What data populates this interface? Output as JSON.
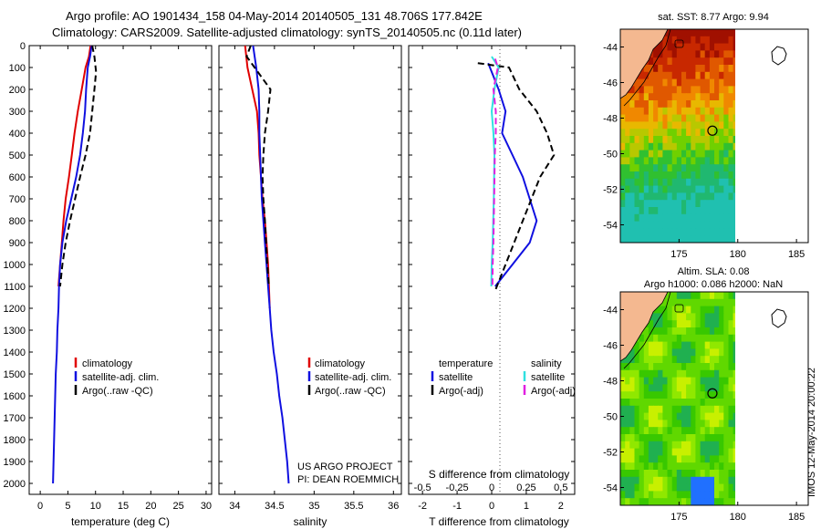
{
  "header": {
    "line1": "Argo profile: AO 1901434_158 04-May-2014 20140505_131 48.706S 177.842E",
    "line2": "Climatology: CARS2009. Satellite-adjusted climatology: synTS_20140505.nc (0.11d later)"
  },
  "colors": {
    "climatology": "#e00000",
    "satellite": "#1010e0",
    "argo": "#000000",
    "salinity_satellite": "#30e0e0",
    "salinity_argo": "#e020e0",
    "land": "#f4b890"
  },
  "notes": {
    "project_line1": "US ARGO PROJECT",
    "project_line2": "PI: DEAN ROEMMICH",
    "timestamp": "IMOS 12-May-2014 20:00:22"
  },
  "chart_data": [
    {
      "type": "line",
      "xlabel": "temperature (deg C)",
      "ylabel": "",
      "xlim": [
        -2,
        31
      ],
      "ylim": [
        2050,
        0
      ],
      "xticks": [
        0,
        5,
        10,
        15,
        20,
        25,
        30
      ],
      "yticks": [
        0,
        100,
        200,
        300,
        400,
        500,
        600,
        700,
        800,
        900,
        1000,
        1100,
        1200,
        1300,
        1400,
        1500,
        1600,
        1700,
        1800,
        1900,
        2000
      ],
      "legend": [
        "climatology",
        "satellite-adj. clim.",
        "Argo(..raw -QC)"
      ],
      "legend_position": "lower-right",
      "series": [
        {
          "name": "climatology",
          "color": "#e00000",
          "style": "solid",
          "x": [
            9.1,
            8.8,
            8.2,
            7.5,
            6.8,
            6.2,
            5.7,
            5.2,
            4.6,
            4.2,
            3.9,
            3.6,
            3.3
          ],
          "y": [
            0,
            50,
            100,
            200,
            300,
            400,
            500,
            600,
            700,
            800,
            900,
            1000,
            1100
          ]
        },
        {
          "name": "satellite-adj. clim.",
          "color": "#1010e0",
          "style": "solid",
          "x": [
            9.3,
            9.0,
            8.6,
            8.3,
            8.1,
            7.7,
            7.2,
            6.5,
            5.6,
            4.7,
            4.0,
            3.6,
            3.4,
            3.3,
            3.1,
            3.0,
            2.8,
            2.7,
            2.6,
            2.5,
            2.4,
            2.3
          ],
          "y": [
            0,
            50,
            100,
            200,
            300,
            400,
            500,
            600,
            700,
            800,
            900,
            1000,
            1100,
            1200,
            1300,
            1400,
            1500,
            1600,
            1700,
            1800,
            1900,
            2000
          ]
        },
        {
          "name": "Argo(..raw -QC)",
          "color": "#000000",
          "style": "dashed",
          "x": [
            9.4,
            9.8,
            10.1,
            9.8,
            9.4,
            9.0,
            8.2,
            7.2,
            6.3,
            5.4,
            4.6,
            4.0,
            3.6
          ],
          "y": [
            0,
            50,
            120,
            200,
            300,
            400,
            500,
            600,
            700,
            800,
            900,
            1000,
            1100
          ]
        }
      ]
    },
    {
      "type": "line",
      "xlabel": "salinity",
      "ylabel": "",
      "xlim": [
        33.8,
        36.1
      ],
      "ylim": [
        2050,
        0
      ],
      "xticks": [
        34,
        34.5,
        35,
        35.5,
        36
      ],
      "xticklabels": [
        "34",
        "34.5",
        "35",
        "35.5",
        "36"
      ],
      "legend": [
        "climatology",
        "satellite-adj. clim.",
        "Argo(..raw -QC)"
      ],
      "legend_position": "lower-right",
      "series": [
        {
          "name": "climatology",
          "color": "#e00000",
          "style": "solid",
          "x": [
            34.13,
            34.16,
            34.22,
            34.28,
            34.3,
            34.31,
            34.33,
            34.35,
            34.38,
            34.4,
            34.42,
            34.43,
            34.44
          ],
          "y": [
            0,
            100,
            200,
            300,
            400,
            500,
            600,
            700,
            800,
            900,
            1000,
            1100,
            1200
          ]
        },
        {
          "name": "satellite-adj. clim.",
          "color": "#1010e0",
          "style": "solid",
          "x": [
            34.23,
            34.27,
            34.3,
            34.31,
            34.31,
            34.32,
            34.33,
            34.34,
            34.36,
            34.38,
            34.4,
            34.42,
            34.44,
            34.46,
            34.49,
            34.53,
            34.56,
            34.6,
            34.63,
            34.66,
            34.68
          ],
          "y": [
            0,
            100,
            200,
            300,
            400,
            500,
            600,
            700,
            800,
            900,
            1000,
            1100,
            1200,
            1300,
            1400,
            1500,
            1600,
            1700,
            1800,
            1900,
            2000
          ]
        },
        {
          "name": "Argo(..raw -QC)",
          "color": "#000000",
          "style": "dashed",
          "x": [
            34.2,
            34.15,
            34.25,
            34.45,
            34.42,
            34.38,
            34.36,
            34.35,
            34.36,
            34.38,
            34.41,
            34.43
          ],
          "y": [
            0,
            50,
            100,
            200,
            300,
            400,
            500,
            600,
            700,
            800,
            1000,
            1100
          ]
        }
      ]
    },
    {
      "type": "line",
      "xlabel": "T difference from climatology",
      "xlabel2": "S difference from climatology",
      "xlim": [
        -2.4,
        2.4
      ],
      "ylim": [
        2050,
        0
      ],
      "xticks": [
        -2,
        -1,
        0,
        1,
        2
      ],
      "xticks_s": [
        "-0.5",
        "-0.25",
        "0",
        "0.25",
        "0.5"
      ],
      "legend_temperature_header": "temperature",
      "legend_salinity_header": "salinity",
      "legend": [
        "satellite",
        "Argo(-adj)",
        "satellite",
        "Argo(-adj)"
      ],
      "legend_position": "lower-center",
      "series": [
        {
          "name": "temperature satellite",
          "color": "#1010e0",
          "style": "solid",
          "x": [
            -0.1,
            0.2,
            0.4,
            0.3,
            0.6,
            0.9,
            1.1,
            1.3,
            1.1,
            0.6,
            0.1
          ],
          "y": [
            80,
            200,
            300,
            400,
            500,
            600,
            700,
            800,
            900,
            1000,
            1100
          ]
        },
        {
          "name": "temperature Argo(-adj)",
          "color": "#000000",
          "style": "dashed",
          "x": [
            -0.4,
            0.5,
            0.8,
            1.3,
            1.6,
            1.8,
            1.4,
            0.9,
            0.4,
            0.1
          ],
          "y": [
            80,
            100,
            200,
            300,
            400,
            500,
            600,
            800,
            1000,
            1120
          ]
        },
        {
          "name": "salinity satellite",
          "color": "#30e0e0",
          "style": "solid",
          "x": [
            0.0,
            0.2,
            0.08,
            0.0,
            0.05,
            0.08,
            0.06,
            0.03,
            0.0,
            -0.01
          ],
          "y": [
            50,
            100,
            200,
            300,
            400,
            500,
            700,
            900,
            1000,
            1100
          ]
        },
        {
          "name": "salinity Argo(-adj)",
          "color": "#e020e0",
          "style": "dashed",
          "x": [
            0.1,
            0.18,
            0.05,
            0.12,
            0.12,
            0.09,
            0.07,
            0.05,
            0.03,
            0.02
          ],
          "y": [
            60,
            100,
            200,
            300,
            400,
            500,
            700,
            900,
            1000,
            1100
          ]
        }
      ]
    },
    {
      "type": "heatmap",
      "title": "sat. SST: 8.77 Argo: 9.94",
      "xlim": [
        170,
        186
      ],
      "ylim": [
        -55,
        -43
      ],
      "xticks": [
        175,
        180,
        185
      ],
      "yticks": [
        -44,
        -46,
        -48,
        -50,
        -52,
        -54
      ],
      "yticklabels": [
        "-44",
        "-46",
        "-48",
        "-50",
        "-52",
        "-54"
      ],
      "marker": {
        "lon": 177.842,
        "lat": -48.706
      }
    },
    {
      "type": "heatmap",
      "title": "Altim. SLA: 0.08",
      "subtitle": "Argo h1000: 0.086 h2000: NaN",
      "xlim": [
        170,
        186
      ],
      "ylim": [
        -55,
        -43
      ],
      "xticks": [
        175,
        180,
        185
      ],
      "yticks": [
        -44,
        -46,
        -48,
        -50,
        -52,
        -54
      ],
      "yticklabels": [
        "-44",
        "-46",
        "-48",
        "-50",
        "-52",
        "-54"
      ],
      "marker": {
        "lon": 177.842,
        "lat": -48.706
      }
    }
  ]
}
